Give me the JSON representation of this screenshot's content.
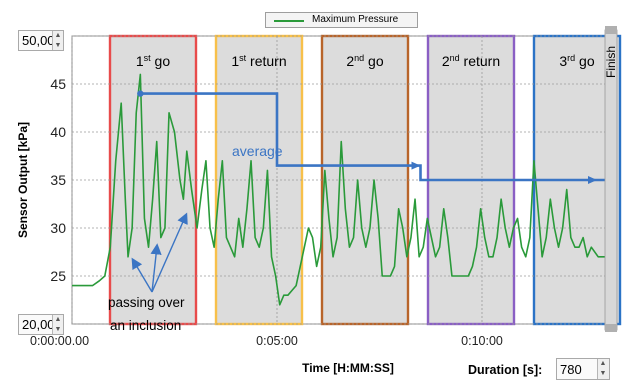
{
  "chart_data": {
    "type": "line",
    "title": "",
    "ylabel": "Sensor Output [kPa]",
    "xlabel": "Time [H:MM:SS]",
    "ylim": [
      20,
      50
    ],
    "xlim_seconds": [
      0,
      780
    ],
    "y_ticks": [
      20,
      25,
      30,
      35,
      40,
      45,
      50
    ],
    "y_tick_labels": [
      "",
      "25",
      "30",
      "35",
      "40",
      "45",
      ""
    ],
    "x_ticks": [
      0,
      300,
      600
    ],
    "x_tick_labels": [
      "0:00:00.00",
      "0:05:00",
      "0:10:00"
    ],
    "grid": true,
    "legend_position": "top-center",
    "series": [
      {
        "name": "Maximum Pressure",
        "color": "#2a9a3a",
        "t": [
          0,
          30,
          40,
          48,
          56,
          64,
          72,
          78,
          82,
          88,
          94,
          100,
          106,
          112,
          118,
          124,
          130,
          136,
          142,
          150,
          158,
          163,
          168,
          175,
          183,
          190,
          196,
          202,
          208,
          214,
          220,
          226,
          232,
          238,
          244,
          250,
          256,
          262,
          268,
          274,
          280,
          286,
          292,
          298,
          304,
          310,
          316,
          322,
          328,
          334,
          340,
          346,
          352,
          358,
          364,
          370,
          376,
          382,
          388,
          394,
          400,
          406,
          412,
          418,
          424,
          430,
          436,
          442,
          448,
          454,
          460,
          466,
          472,
          478,
          484,
          490,
          496,
          502,
          508,
          514,
          520,
          526,
          532,
          538,
          544,
          550,
          556,
          562,
          568,
          574,
          580,
          586,
          592,
          598,
          604,
          610,
          616,
          622,
          628,
          634,
          640,
          646,
          652,
          658,
          664,
          670,
          676,
          682,
          688,
          694,
          700,
          706,
          712,
          718,
          724,
          730,
          736,
          742,
          748,
          754,
          760,
          770,
          780
        ],
        "values": [
          24,
          24,
          24.5,
          25,
          28,
          37,
          43,
          33,
          27,
          30,
          42,
          46,
          31,
          28,
          33,
          39,
          29,
          30,
          42,
          40,
          35,
          33,
          38,
          34,
          30,
          34,
          37,
          30,
          28,
          33,
          37,
          29,
          28,
          27,
          31,
          28,
          32,
          37,
          29,
          28,
          30,
          36,
          27,
          25,
          22,
          23,
          23,
          23.5,
          24,
          26,
          28,
          30,
          29,
          26,
          28,
          36,
          31,
          27,
          29,
          39,
          32,
          28,
          29,
          35,
          30,
          28,
          30,
          35,
          31,
          25,
          25,
          25,
          26,
          32,
          30,
          27,
          29,
          33,
          27,
          28,
          31,
          29,
          27,
          28,
          32,
          29,
          25,
          25,
          25,
          25,
          25,
          26,
          28,
          32,
          29,
          27,
          27,
          29,
          33,
          30,
          28,
          30,
          31,
          28,
          27,
          29,
          37,
          32,
          27,
          29,
          33,
          30,
          28,
          30,
          34,
          29,
          28,
          28,
          29,
          27,
          28,
          27,
          27
        ]
      },
      {
        "name": "average",
        "color": "#3b75c4",
        "t": [
          100,
          300,
          300,
          510,
          510,
          780
        ],
        "values": [
          44,
          44,
          36.5,
          36.5,
          35,
          35
        ]
      }
    ],
    "phases": [
      {
        "label_base": "1",
        "label_sup": "st",
        "label_rest": " go",
        "t_start": 100,
        "t_end": 320,
        "color": "#e84b4b"
      },
      {
        "label_base": "1",
        "label_sup": "st",
        "label_rest": " return",
        "t_start": 320,
        "t_end": 540,
        "color": "#f7c04a"
      },
      {
        "label_base": "2",
        "label_sup": "nd",
        "label_rest": " go",
        "t_start": 540,
        "t_end": 760,
        "color": "#b8642a"
      },
      {
        "label_base": "2",
        "label_sup": "nd",
        "label_rest": " return",
        "t_start": 760,
        "t_end": 980,
        "color": "#8a5fc4"
      },
      {
        "label_base": "3",
        "label_sup": "rd",
        "label_rest": " go",
        "t_start": 980,
        "t_end": 1200,
        "color": "#2b73c6"
      }
    ],
    "annotations": {
      "average_label": "average",
      "inclusion_label_line1": "passing over",
      "inclusion_label_line2": "an inclusion",
      "finish_label": "Finish"
    }
  },
  "controls": {
    "y_max_value": "50,00",
    "y_min_value": "20,00",
    "duration_label": "Duration [s]:",
    "duration_value": "780"
  }
}
